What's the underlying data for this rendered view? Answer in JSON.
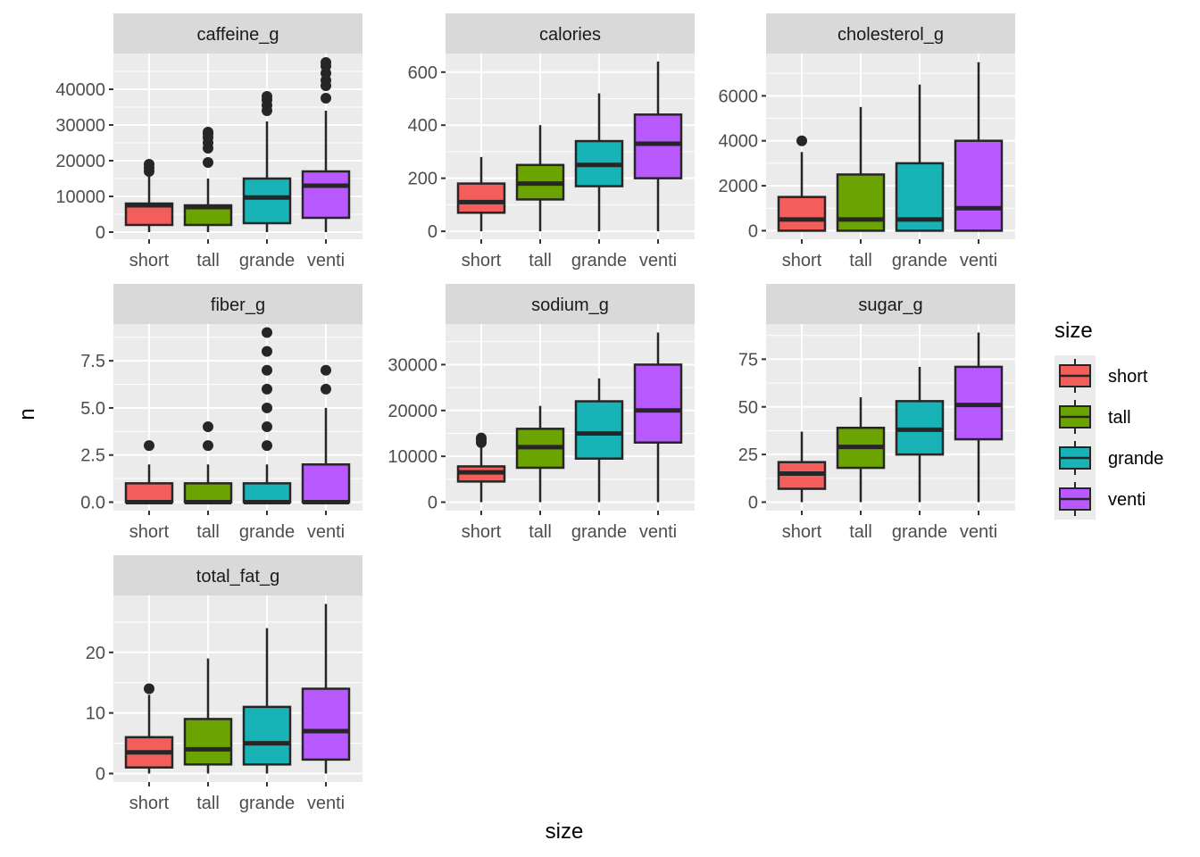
{
  "chart_data": {
    "type": "boxplot",
    "title": "",
    "xlabel": "size",
    "ylabel": "n",
    "categories": [
      "short",
      "tall",
      "grande",
      "venti"
    ],
    "colors": {
      "short": "#F8766D",
      "tall": "#7CAE00",
      "grande": "#00BFC4",
      "venti": "#C77CFF"
    },
    "fill_colors": [
      "#F35E5A",
      "#6BA300",
      "#17B3B7",
      "#B85AFF"
    ],
    "legend": {
      "title": "size",
      "position": "right",
      "entries": [
        "short",
        "tall",
        "grande",
        "venti"
      ]
    },
    "facets": [
      {
        "name": "caffeine_g",
        "ylim": [
          -2000,
          50000
        ],
        "yticks": [
          0,
          10000,
          20000,
          30000,
          40000
        ],
        "ytick_labels": [
          "0",
          "10000",
          "20000",
          "30000",
          "40000"
        ],
        "boxes": [
          {
            "category": "short",
            "lower": 0,
            "q1": 2000,
            "median": 7500,
            "q3": 8000,
            "upper": 16500,
            "outliers": [
              17000,
              18000,
              19000
            ]
          },
          {
            "category": "tall",
            "lower": 0,
            "q1": 2000,
            "median": 7000,
            "q3": 7500,
            "upper": 15000,
            "outliers": [
              19500,
              23500,
              25000,
              26500,
              27500,
              28000
            ]
          },
          {
            "category": "grande",
            "lower": 0,
            "q1": 2500,
            "median": 9700,
            "q3": 15000,
            "upper": 31000,
            "outliers": [
              34000,
              35500,
              37000,
              38000
            ]
          },
          {
            "category": "venti",
            "lower": 0,
            "q1": 4000,
            "median": 13000,
            "q3": 17000,
            "upper": 34000,
            "outliers": [
              37500,
              41000,
              42500,
              44500,
              46500,
              47500
            ]
          }
        ]
      },
      {
        "name": "calories",
        "ylim": [
          -30,
          670
        ],
        "yticks": [
          0,
          200,
          400,
          600
        ],
        "ytick_labels": [
          "0",
          "200",
          "400",
          "600"
        ],
        "boxes": [
          {
            "category": "short",
            "lower": 0,
            "q1": 70,
            "median": 110,
            "q3": 180,
            "upper": 280,
            "outliers": []
          },
          {
            "category": "tall",
            "lower": 0,
            "q1": 120,
            "median": 180,
            "q3": 250,
            "upper": 400,
            "outliers": []
          },
          {
            "category": "grande",
            "lower": 0,
            "q1": 170,
            "median": 250,
            "q3": 340,
            "upper": 520,
            "outliers": []
          },
          {
            "category": "venti",
            "lower": 0,
            "q1": 200,
            "median": 330,
            "q3": 440,
            "upper": 640,
            "outliers": []
          }
        ]
      },
      {
        "name": "cholesterol_g",
        "ylim": [
          -380,
          7880
        ],
        "yticks": [
          0,
          2000,
          4000,
          6000
        ],
        "ytick_labels": [
          "0",
          "2000",
          "4000",
          "6000"
        ],
        "boxes": [
          {
            "category": "short",
            "lower": 0,
            "q1": 0,
            "median": 500,
            "q3": 1500,
            "upper": 3500,
            "outliers": [
              4000
            ]
          },
          {
            "category": "tall",
            "lower": 0,
            "q1": 0,
            "median": 500,
            "q3": 2500,
            "upper": 5500,
            "outliers": []
          },
          {
            "category": "grande",
            "lower": 0,
            "q1": 0,
            "median": 500,
            "q3": 3000,
            "upper": 6500,
            "outliers": []
          },
          {
            "category": "venti",
            "lower": 0,
            "q1": 0,
            "median": 1000,
            "q3": 4000,
            "upper": 7500,
            "outliers": []
          }
        ]
      },
      {
        "name": "fiber_g",
        "ylim": [
          -0.45,
          9.45
        ],
        "yticks": [
          0,
          2.5,
          5,
          7.5
        ],
        "ytick_labels": [
          "0.0",
          "2.5",
          "5.0",
          "7.5"
        ],
        "boxes": [
          {
            "category": "short",
            "lower": 0,
            "q1": 0,
            "median": 0,
            "q3": 1,
            "upper": 2,
            "outliers": [
              3
            ]
          },
          {
            "category": "tall",
            "lower": 0,
            "q1": 0,
            "median": 0,
            "q3": 1,
            "upper": 2,
            "outliers": [
              3,
              4
            ]
          },
          {
            "category": "grande",
            "lower": 0,
            "q1": 0,
            "median": 0,
            "q3": 1,
            "upper": 2,
            "outliers": [
              3,
              4,
              5,
              6,
              7,
              8,
              9
            ]
          },
          {
            "category": "venti",
            "lower": 0,
            "q1": 0,
            "median": 0,
            "q3": 2,
            "upper": 5,
            "outliers": [
              6,
              7
            ]
          }
        ]
      },
      {
        "name": "sodium_g",
        "ylim": [
          -1850,
          38850
        ],
        "yticks": [
          0,
          10000,
          20000,
          30000
        ],
        "ytick_labels": [
          "0",
          "10000",
          "20000",
          "30000"
        ],
        "boxes": [
          {
            "category": "short",
            "lower": 0,
            "q1": 4500,
            "median": 6500,
            "q3": 7800,
            "upper": 12500,
            "outliers": [
              13000,
              13500,
              14000
            ]
          },
          {
            "category": "tall",
            "lower": 0,
            "q1": 7500,
            "median": 12000,
            "q3": 16000,
            "upper": 21000,
            "outliers": []
          },
          {
            "category": "grande",
            "lower": 0,
            "q1": 9500,
            "median": 15000,
            "q3": 22000,
            "upper": 27000,
            "outliers": []
          },
          {
            "category": "venti",
            "lower": 0,
            "q1": 13000,
            "median": 20000,
            "q3": 30000,
            "upper": 37000,
            "outliers": []
          }
        ]
      },
      {
        "name": "sugar_g",
        "ylim": [
          -4.45,
          93.45
        ],
        "yticks": [
          0,
          25,
          50,
          75
        ],
        "ytick_labels": [
          "0",
          "25",
          "50",
          "75"
        ],
        "boxes": [
          {
            "category": "short",
            "lower": 0,
            "q1": 7,
            "median": 15,
            "q3": 21,
            "upper": 37,
            "outliers": []
          },
          {
            "category": "tall",
            "lower": 0,
            "q1": 18,
            "median": 29,
            "q3": 39,
            "upper": 55,
            "outliers": []
          },
          {
            "category": "grande",
            "lower": 0,
            "q1": 25,
            "median": 38,
            "q3": 53,
            "upper": 71,
            "outliers": []
          },
          {
            "category": "venti",
            "lower": 0,
            "q1": 33,
            "median": 51,
            "q3": 71,
            "upper": 89,
            "outliers": []
          }
        ]
      },
      {
        "name": "total_fat_g",
        "ylim": [
          -1.4,
          29.4
        ],
        "yticks": [
          0,
          10,
          20
        ],
        "ytick_labels": [
          "0",
          "10",
          "20"
        ],
        "boxes": [
          {
            "category": "short",
            "lower": 0,
            "q1": 1,
            "median": 3.5,
            "q3": 6,
            "upper": 13,
            "outliers": [
              14
            ]
          },
          {
            "category": "tall",
            "lower": 0,
            "q1": 1.5,
            "median": 4,
            "q3": 9,
            "upper": 19,
            "outliers": []
          },
          {
            "category": "grande",
            "lower": 0,
            "q1": 1.5,
            "median": 5,
            "q3": 11,
            "upper": 24,
            "outliers": []
          },
          {
            "category": "venti",
            "lower": 0,
            "q1": 2.3,
            "median": 7,
            "q3": 14,
            "upper": 28,
            "outliers": []
          }
        ]
      }
    ]
  }
}
